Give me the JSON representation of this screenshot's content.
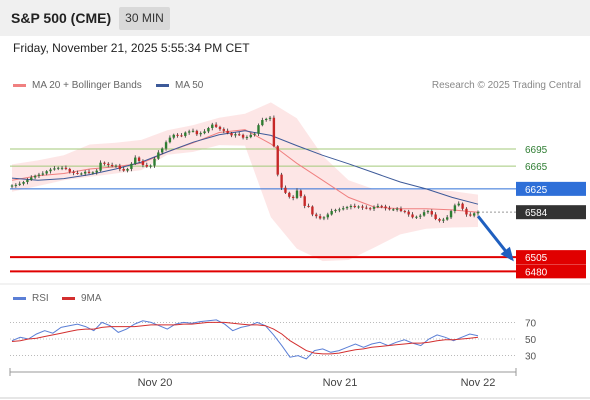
{
  "header": {
    "title": "S&P 500 (CME)",
    "timeframe": "30 MIN"
  },
  "timestamp": "Friday, November 21, 2025 5:55:34 PM CET",
  "legend": {
    "ma20": "MA 20 + Bollinger Bands",
    "ma50": "MA 50",
    "credit": "Research © 2025 Trading Central"
  },
  "rsi_legend": {
    "rsi": "RSI",
    "ma9": "9MA"
  },
  "colors": {
    "ma20": "#f08080",
    "ma50": "#3d5a99",
    "bollinger": "#fde3e3",
    "up": "#2e7d32",
    "down": "#c62828",
    "resistance": "#a3c97a",
    "pivot": "#2e6fd8",
    "support": "#e00000",
    "current": "#333333",
    "rsi": "#5b7fd6",
    "rsi_ma": "#d32f2f"
  },
  "chart_data": [
    {
      "type": "candlestick",
      "x_ticks": [
        "Nov 20",
        "Nov 21",
        "Nov 22"
      ],
      "ylim": [
        6456,
        6790
      ],
      "levels": [
        {
          "value": 6695,
          "label": "6695",
          "kind": "resistance"
        },
        {
          "value": 6665,
          "label": "6665",
          "kind": "resistance"
        },
        {
          "value": 6625,
          "label": "6625",
          "kind": "pivot"
        },
        {
          "value": 6584,
          "label": "6584",
          "kind": "current"
        },
        {
          "value": 6505,
          "label": "6505",
          "kind": "support"
        },
        {
          "value": 6480,
          "label": "6480",
          "kind": "support"
        }
      ],
      "closes": [
        6631,
        6632,
        6634,
        6637,
        6641,
        6645,
        6648,
        6650,
        6652,
        6656,
        6659,
        6661,
        6662,
        6662,
        6660,
        6655,
        6653,
        6652,
        6652,
        6655,
        6653,
        6654,
        6657,
        6671,
        6669,
        6667,
        6665,
        6666,
        6660,
        6657,
        6660,
        6669,
        6680,
        6674,
        6667,
        6664,
        6666,
        6678,
        6689,
        6696,
        6707,
        6715,
        6720,
        6719,
        6718,
        6724,
        6726,
        6727,
        6721,
        6723,
        6726,
        6732,
        6738,
        6734,
        6730,
        6727,
        6723,
        6719,
        6721,
        6720,
        6715,
        6716,
        6720,
        6722,
        6737,
        6746,
        6748,
        6750,
        6700,
        6650,
        6627,
        6618,
        6611,
        6609,
        6622,
        6612,
        6595,
        6594,
        6580,
        6577,
        6573,
        6575,
        6580,
        6586,
        6588,
        6589,
        6591,
        6593,
        6595,
        6593,
        6594,
        6592,
        6591,
        6590,
        6593,
        6595,
        6594,
        6591,
        6589,
        6589,
        6590,
        6586,
        6585,
        6580,
        6575,
        6576,
        6578,
        6584,
        6586,
        6580,
        6572,
        6569,
        6571,
        6575,
        6586,
        6596,
        6599,
        6590,
        6580,
        6578,
        6582,
        6584
      ],
      "ma20": [
        6640,
        6648,
        6652,
        6660,
        6664,
        6670,
        6690,
        6706,
        6724,
        6729,
        6704,
        6670,
        6640,
        6610,
        6593,
        6590,
        6590,
        6588,
        6584
      ],
      "ma50": [
        6644,
        6640,
        6643,
        6650,
        6660,
        6672,
        6690,
        6707,
        6720,
        6727,
        6719,
        6701,
        6684,
        6669,
        6653,
        6637,
        6625,
        6610,
        6598
      ],
      "bb_upper": [
        6668,
        6675,
        6684,
        6703,
        6706,
        6711,
        6728,
        6737,
        6750,
        6757,
        6777,
        6749,
        6683,
        6640,
        6624,
        6623,
        6624,
        6621,
        6615
      ],
      "bb_lower": [
        6620,
        6630,
        6640,
        6646,
        6652,
        6658,
        6685,
        6690,
        6702,
        6701,
        6575,
        6520,
        6498,
        6500,
        6522,
        6545,
        6555,
        6557,
        6558
      ],
      "forecast": [
        6584,
        6484
      ]
    },
    {
      "type": "line",
      "title": "RSI",
      "y_ticks": [
        70,
        50,
        30
      ],
      "ylim": [
        15,
        85
      ],
      "rsi": [
        48,
        52,
        50,
        56,
        60,
        57,
        64,
        66,
        68,
        65,
        60,
        70,
        66,
        58,
        62,
        68,
        72,
        70,
        66,
        62,
        68,
        70,
        69,
        71,
        72,
        73,
        68,
        60,
        64,
        66,
        70,
        66,
        55,
        42,
        28,
        30,
        26,
        36,
        38,
        34,
        36,
        40,
        44,
        40,
        44,
        46,
        42,
        46,
        49,
        45,
        42,
        50,
        55,
        52,
        48,
        52,
        56,
        54
      ],
      "rsi_ma": [
        47,
        48,
        50,
        51,
        53,
        55,
        57,
        59,
        61,
        62,
        62,
        64,
        65,
        65,
        65,
        65,
        66,
        67,
        67,
        67,
        67,
        68,
        68,
        69,
        70,
        70,
        70,
        69,
        68,
        67,
        67,
        66,
        62,
        56,
        48,
        42,
        36,
        33,
        32,
        32,
        33,
        35,
        37,
        38,
        40,
        41,
        42,
        43,
        44,
        45,
        45,
        46,
        48,
        49,
        49,
        50,
        51,
        52
      ]
    }
  ]
}
